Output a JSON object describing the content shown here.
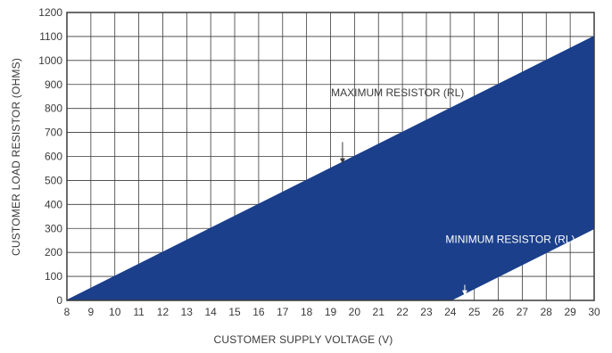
{
  "chart_data": {
    "type": "area",
    "title": "",
    "xlabel": "CUSTOMER SUPPLY VOLTAGE (V)",
    "ylabel": "CUSTOMER LOAD RESISTOR (OHMS)",
    "xlim": [
      8,
      30
    ],
    "ylim": [
      0,
      1200
    ],
    "x_ticks": [
      8,
      9,
      10,
      11,
      12,
      13,
      14,
      15,
      16,
      17,
      18,
      19,
      20,
      21,
      22,
      23,
      24,
      25,
      26,
      27,
      28,
      29,
      30
    ],
    "y_ticks": [
      0,
      100,
      200,
      300,
      400,
      500,
      600,
      700,
      800,
      900,
      1000,
      1100,
      1200
    ],
    "grid": true,
    "fill_color": "#1b3f8b",
    "series": [
      {
        "name": "MAXIMUM RESISTOR (RL)",
        "x": [
          8,
          30
        ],
        "y": [
          0,
          1100
        ]
      },
      {
        "name": "MINIMUM RESISTOR (RL)",
        "x": [
          24,
          30
        ],
        "y": [
          0,
          300
        ]
      }
    ],
    "annotations": [
      {
        "text": "MAXIMUM RESISTOR (RL)",
        "label_at": [
          21.8,
          850
        ],
        "arrow_from": [
          19.5,
          660
        ],
        "arrow_to": [
          19.5,
          570
        ],
        "text_color": "#3a3a3a",
        "arrow_color": "#3a3a3a"
      },
      {
        "text": "MINIMUM RESISTOR (RL)",
        "label_at": [
          26.5,
          240
        ],
        "arrow_from": [
          24.6,
          65
        ],
        "arrow_to": [
          24.6,
          20
        ],
        "text_color": "#ffffff",
        "arrow_color": "#ffffff"
      }
    ]
  }
}
